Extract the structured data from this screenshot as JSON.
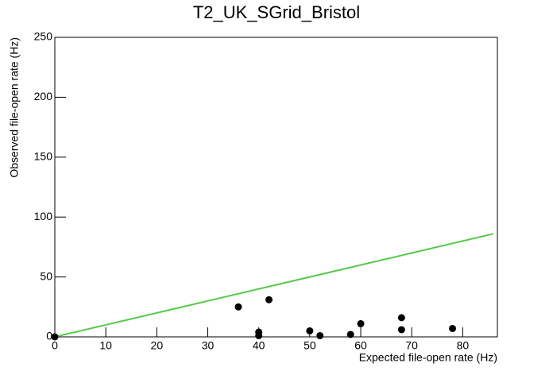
{
  "chart_data": {
    "type": "scatter",
    "title": "T2_UK_SGrid_Bristol",
    "x_label": "Expected file-open rate (Hz)",
    "y_label": "Observed file-open rate (Hz)",
    "xlim": [
      0,
      86.8
    ],
    "ylim": [
      0,
      250
    ],
    "xticks": [
      0,
      10,
      20,
      30,
      40,
      50,
      60,
      70,
      80
    ],
    "yticks": [
      0,
      50,
      100,
      150,
      200,
      250
    ],
    "series": [
      {
        "type": "line",
        "color": "#55c94b",
        "x": [
          0,
          86
        ],
        "values": [
          0,
          86
        ]
      },
      {
        "type": "scatter",
        "color": "#000000",
        "x": [
          0,
          36,
          40,
          40,
          42,
          50,
          52,
          58,
          60,
          68,
          68,
          78
        ],
        "values": [
          0,
          25,
          4,
          1,
          31,
          5,
          1,
          2,
          11,
          16,
          6,
          7
        ]
      }
    ]
  }
}
